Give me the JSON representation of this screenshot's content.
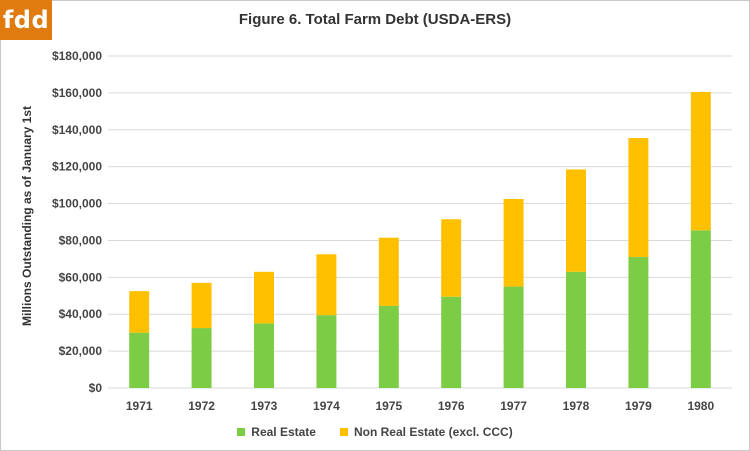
{
  "logo": {
    "text": "fdd",
    "color": "#e07b10"
  },
  "chart_data": {
    "type": "bar",
    "stacked": true,
    "title": "Figure 6.  Total Farm Debt (USDA-ERS)",
    "xlabel": "",
    "ylabel": "Millions Outstanding  as of January 1st",
    "categories": [
      "1971",
      "1972",
      "1973",
      "1974",
      "1975",
      "1976",
      "1977",
      "1978",
      "1979",
      "1980"
    ],
    "series": [
      {
        "name": "Real Estate",
        "color": "#7dcc46",
        "values": [
          30000,
          32500,
          35000,
          39500,
          44500,
          49500,
          55000,
          63000,
          71000,
          85500
        ]
      },
      {
        "name": "Non Real Estate (excl. CCC)",
        "color": "#ffc000",
        "values": [
          22500,
          24500,
          28000,
          33000,
          37000,
          42000,
          47500,
          55500,
          64500,
          75000
        ]
      }
    ],
    "ylim": [
      0,
      180000
    ],
    "yticks": [
      0,
      20000,
      40000,
      60000,
      80000,
      100000,
      120000,
      140000,
      160000,
      180000
    ],
    "ytick_labels": [
      "$0",
      "$20,000",
      "$40,000",
      "$60,000",
      "$80,000",
      "$100,000",
      "$120,000",
      "$140,000",
      "$160,000",
      "$180,000"
    ],
    "grid": true,
    "grid_color": "#d9d9d9",
    "legend_position": "bottom"
  }
}
